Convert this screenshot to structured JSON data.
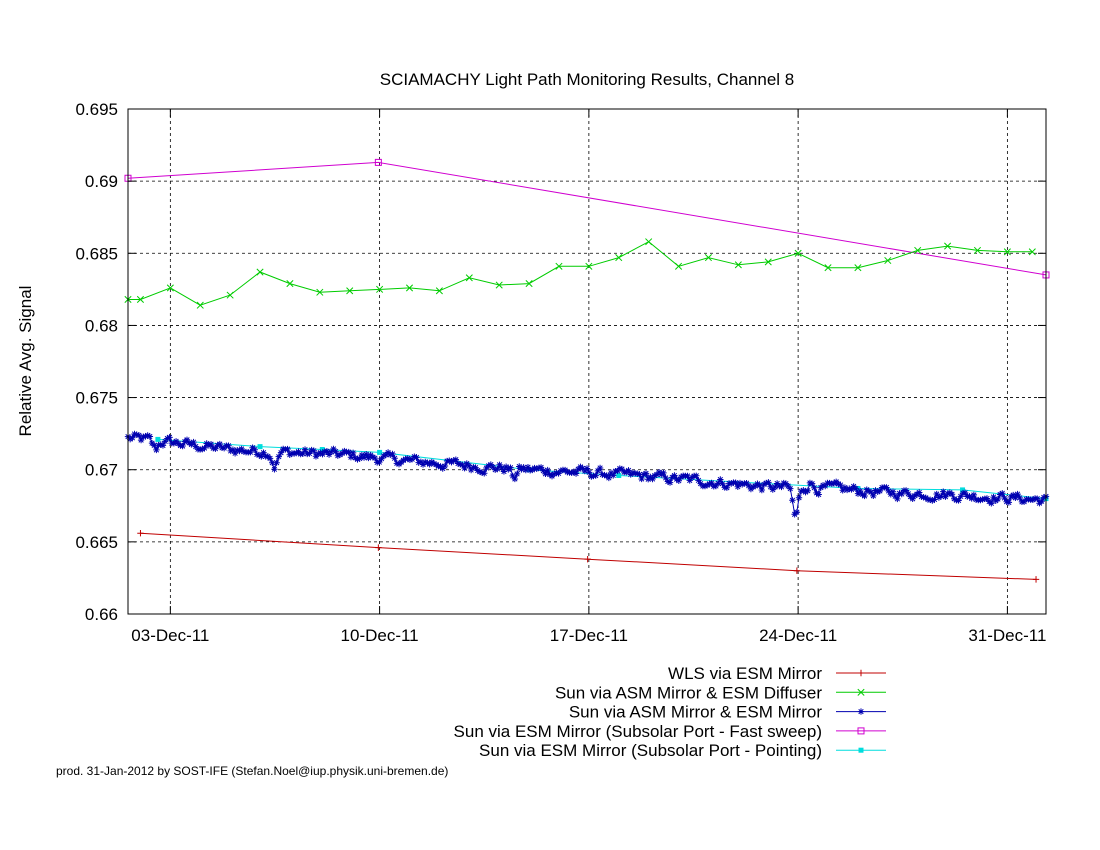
{
  "chart_data": {
    "type": "line",
    "title": "SCIAMACHY Light Path Monitoring Results, Channel 8",
    "ylabel": "Relative Avg. Signal",
    "xlabel": "",
    "ylim": [
      0.66,
      0.695
    ],
    "xlim": [
      "2011-12-01T14:00",
      "2012-01-01T07:00"
    ],
    "yticks": [
      "0.66",
      "0.665",
      "0.67",
      "0.675",
      "0.68",
      "0.685",
      "0.69",
      "0.695"
    ],
    "xticks": [
      {
        "date": "2011-12-03T00:00",
        "label": "03-Dec-11"
      },
      {
        "date": "2011-12-10T00:00",
        "label": "10-Dec-11"
      },
      {
        "date": "2011-12-17T00:00",
        "label": "17-Dec-11"
      },
      {
        "date": "2011-12-24T00:00",
        "label": "24-Dec-11"
      },
      {
        "date": "2011-12-31T00:00",
        "label": "31-Dec-11"
      }
    ],
    "grid": true,
    "legend_position": "bottom-right",
    "series": [
      {
        "name": "WLS via ESM Mirror",
        "color": "#c00000",
        "marker": "plus",
        "points": [
          [
            "2011-12-02T00:00",
            0.6656
          ],
          [
            "2011-12-09T23:00",
            0.6646
          ],
          [
            "2011-12-16T23:00",
            0.6638
          ],
          [
            "2011-12-23T23:00",
            0.663
          ],
          [
            "2011-12-31T23:00",
            0.6624
          ]
        ]
      },
      {
        "name": "Sun via ASM Mirror & ESM Diffuser",
        "color": "#00cc00",
        "marker": "x",
        "points": [
          [
            "2011-12-01T14:00",
            0.6818
          ],
          [
            "2011-12-02T00:00",
            0.6818
          ],
          [
            "2011-12-03T00:00",
            0.6826
          ],
          [
            "2011-12-04T00:00",
            0.6814
          ],
          [
            "2011-12-05T00:00",
            0.6821
          ],
          [
            "2011-12-06T00:00",
            0.6837
          ],
          [
            "2011-12-07T00:00",
            0.6829
          ],
          [
            "2011-12-08T00:00",
            0.6823
          ],
          [
            "2011-12-09T00:00",
            0.6824
          ],
          [
            "2011-12-10T00:00",
            0.6825
          ],
          [
            "2011-12-11T00:00",
            0.6826
          ],
          [
            "2011-12-12T00:00",
            0.6824
          ],
          [
            "2011-12-13T00:00",
            0.6833
          ],
          [
            "2011-12-14T00:00",
            0.6828
          ],
          [
            "2011-12-15T00:00",
            0.6829
          ],
          [
            "2011-12-16T00:00",
            0.6841
          ],
          [
            "2011-12-17T00:00",
            0.6841
          ],
          [
            "2011-12-18T00:00",
            0.6847
          ],
          [
            "2011-12-19T00:00",
            0.6858
          ],
          [
            "2011-12-20T00:00",
            0.6841
          ],
          [
            "2011-12-21T00:00",
            0.6847
          ],
          [
            "2011-12-22T00:00",
            0.6842
          ],
          [
            "2011-12-23T00:00",
            0.6844
          ],
          [
            "2011-12-24T00:00",
            0.685
          ],
          [
            "2011-12-25T00:00",
            0.684
          ],
          [
            "2011-12-26T00:00",
            0.684
          ],
          [
            "2011-12-27T00:00",
            0.6845
          ],
          [
            "2011-12-28T00:00",
            0.6852
          ],
          [
            "2011-12-29T00:00",
            0.6855
          ],
          [
            "2011-12-30T00:00",
            0.6852
          ],
          [
            "2011-12-31T00:00",
            0.6851
          ],
          [
            "2011-12-31T20:00",
            0.6851
          ]
        ]
      },
      {
        "name": "Sun via ASM Mirror & ESM Mirror",
        "color": "#0000b0",
        "marker": "star",
        "trend_points": [
          [
            "2011-12-01T14:00",
            0.6722
          ],
          [
            "2011-12-03T00:00",
            0.6719
          ],
          [
            "2011-12-05T00:00",
            0.6714
          ],
          [
            "2011-12-07T00:00",
            0.6712
          ],
          [
            "2011-12-09T00:00",
            0.671
          ],
          [
            "2011-12-11T00:00",
            0.6706
          ],
          [
            "2011-12-13T00:00",
            0.6703
          ],
          [
            "2011-12-15T00:00",
            0.67
          ],
          [
            "2011-12-17T00:00",
            0.6698
          ],
          [
            "2011-12-19T00:00",
            0.6695
          ],
          [
            "2011-12-21T00:00",
            0.6692
          ],
          [
            "2011-12-23T00:00",
            0.6688
          ],
          [
            "2011-12-25T00:00",
            0.6687
          ],
          [
            "2011-12-27T00:00",
            0.6684
          ],
          [
            "2011-12-29T00:00",
            0.6683
          ],
          [
            "2012-01-01T07:00",
            0.6679
          ]
        ],
        "anomalies": [
          [
            "2011-12-02T12:00",
            0.6714
          ],
          [
            "2011-12-06T12:00",
            0.6703
          ],
          [
            "2011-12-14T12:00",
            0.6695
          ],
          [
            "2011-12-23T22:00",
            0.6667
          ],
          [
            "2011-12-24T10:00",
            0.6691
          ]
        ]
      },
      {
        "name": "Sun via ESM Mirror (Subsolar Port - Fast sweep)",
        "color": "#d000d0",
        "marker": "square-open",
        "points": [
          [
            "2011-12-01T14:00",
            0.6902
          ],
          [
            "2011-12-09T23:00",
            0.6913
          ],
          [
            "2012-01-01T07:00",
            0.6835
          ]
        ]
      },
      {
        "name": "Sun via ESM Mirror (Subsolar Port - Pointing)",
        "color": "#00dddd",
        "marker": "square-filled",
        "points": [
          [
            "2011-12-02T14:00",
            0.6721
          ],
          [
            "2011-12-06T00:00",
            0.6716
          ],
          [
            "2011-12-08T02:00",
            0.6714
          ],
          [
            "2011-12-10T00:00",
            0.6712
          ],
          [
            "2011-12-15T00:00",
            0.67
          ],
          [
            "2011-12-18T00:00",
            0.6696
          ],
          [
            "2011-12-26T00:00",
            0.6687
          ],
          [
            "2011-12-29T12:00",
            0.6686
          ],
          [
            "2012-01-01T07:00",
            0.668
          ]
        ]
      }
    ]
  },
  "footer": "prod. 31-Jan-2012 by SOST-IFE (Stefan.Noel@iup.physik.uni-bremen.de)"
}
